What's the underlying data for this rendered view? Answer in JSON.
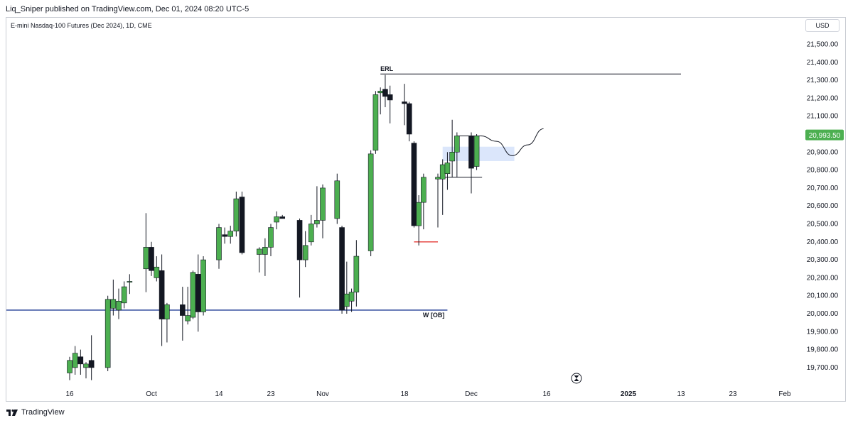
{
  "header": {
    "published_text": "Liq_Sniper published on TradingView.com, Dec 01, 2024 08:20 UTC-5"
  },
  "symbol": {
    "title": "E-mini Nasdaq-100 Futures (Dec 2024), 1D, CME"
  },
  "currency_button": "USD",
  "footer": {
    "brand": "TradingView"
  },
  "colors": {
    "up_candle": "#4caf50",
    "down_candle": "#131722",
    "wick": "#131722",
    "erl_line": "#131722",
    "ob_line": "#1f3a93",
    "low_marker": "#e53935",
    "fvg_box": "#dbe6fb",
    "price_tag": "#4caf50"
  },
  "chart_data": {
    "type": "candlestick",
    "instrument": "E-mini Nasdaq-100 Futures (Dec 2024)",
    "timeframe": "1D",
    "currency": "USD",
    "y_axis": {
      "ticks": [
        19700,
        19800,
        19900,
        20000,
        20100,
        20200,
        20300,
        20400,
        20500,
        20600,
        20700,
        20800,
        20900,
        21000,
        21100,
        21200,
        21300,
        21400,
        21500
      ],
      "tick_labels": [
        "19,700.00",
        "19,800.00",
        "19,900.00",
        "20,000.00",
        "20,100.00",
        "20,200.00",
        "20,300.00",
        "20,400.00",
        "20,500.00",
        "20,600.00",
        "20,700.00",
        "20,800.00",
        "20,900.00",
        "21,000.00",
        "21,100.00",
        "21,200.00",
        "21,300.00",
        "21,400.00",
        "21,500.00"
      ],
      "range": [
        19630,
        21570
      ]
    },
    "x_axis": {
      "labels": [
        {
          "text": "16",
          "date": "2024-09-16"
        },
        {
          "text": "Oct",
          "date": "2024-10-01"
        },
        {
          "text": "14",
          "date": "2024-10-14"
        },
        {
          "text": "23",
          "date": "2024-10-23"
        },
        {
          "text": "Nov",
          "date": "2024-11-01"
        },
        {
          "text": "18",
          "date": "2024-11-18"
        },
        {
          "text": "Dec",
          "date": "2024-12-02"
        },
        {
          "text": "16",
          "date": "2024-12-16"
        },
        {
          "text": "2025",
          "date": "2025-01-01",
          "bold": true
        },
        {
          "text": "13",
          "date": "2025-01-13"
        },
        {
          "text": "23",
          "date": "2025-01-23"
        },
        {
          "text": "Feb",
          "date": "2025-02-03"
        }
      ]
    },
    "last_price": 20993.5,
    "last_price_label": "20,993.50",
    "candles": [
      {
        "date": "2024-09-16",
        "o": 19670,
        "h": 19760,
        "l": 19630,
        "c": 19740
      },
      {
        "date": "2024-09-17",
        "o": 19700,
        "h": 19820,
        "l": 19660,
        "c": 19780
      },
      {
        "date": "2024-09-18",
        "o": 19760,
        "h": 19800,
        "l": 19660,
        "c": 19720
      },
      {
        "date": "2024-09-19",
        "o": 19700,
        "h": 19730,
        "l": 19640,
        "c": 19720
      },
      {
        "date": "2024-09-20",
        "o": 19740,
        "h": 19880,
        "l": 19630,
        "c": 19700
      },
      {
        "date": "2024-09-23",
        "o": 19700,
        "h": 20100,
        "l": 19680,
        "c": 20080
      },
      {
        "date": "2024-09-24",
        "o": 20030,
        "h": 20190,
        "l": 19990,
        "c": 20080
      },
      {
        "date": "2024-09-25",
        "o": 20020,
        "h": 20140,
        "l": 19970,
        "c": 20070
      },
      {
        "date": "2024-09-26",
        "o": 20060,
        "h": 20180,
        "l": 20030,
        "c": 20150
      },
      {
        "date": "2024-09-27",
        "o": 20180,
        "h": 20220,
        "l": 20110,
        "c": 20180
      },
      {
        "date": "2024-09-30",
        "o": 20250,
        "h": 20560,
        "l": 20120,
        "c": 20370
      },
      {
        "date": "2024-10-01",
        "o": 20370,
        "h": 20400,
        "l": 20210,
        "c": 20240
      },
      {
        "date": "2024-10-02",
        "o": 20200,
        "h": 20320,
        "l": 20180,
        "c": 20260
      },
      {
        "date": "2024-10-03",
        "o": 20240,
        "h": 20330,
        "l": 19820,
        "c": 19970
      },
      {
        "date": "2024-10-04",
        "o": 19970,
        "h": 20060,
        "l": 19840,
        "c": 20050
      },
      {
        "date": "2024-10-07",
        "o": 20050,
        "h": 20150,
        "l": 19850,
        "c": 19990
      },
      {
        "date": "2024-10-08",
        "o": 19960,
        "h": 20150,
        "l": 19940,
        "c": 19990
      },
      {
        "date": "2024-10-09",
        "o": 19980,
        "h": 20240,
        "l": 19970,
        "c": 20230
      },
      {
        "date": "2024-10-10",
        "o": 20220,
        "h": 20330,
        "l": 19900,
        "c": 20010
      },
      {
        "date": "2024-10-11",
        "o": 20010,
        "h": 20320,
        "l": 19990,
        "c": 20300
      },
      {
        "date": "2024-10-14",
        "o": 20300,
        "h": 20500,
        "l": 20250,
        "c": 20480
      },
      {
        "date": "2024-10-15",
        "o": 20440,
        "h": 20480,
        "l": 20390,
        "c": 20430
      },
      {
        "date": "2024-10-16",
        "o": 20430,
        "h": 20490,
        "l": 20390,
        "c": 20460
      },
      {
        "date": "2024-10-17",
        "o": 20460,
        "h": 20680,
        "l": 20430,
        "c": 20640
      },
      {
        "date": "2024-10-18",
        "o": 20650,
        "h": 20680,
        "l": 20330,
        "c": 20340
      },
      {
        "date": "2024-10-21",
        "o": 20330,
        "h": 20370,
        "l": 20230,
        "c": 20360
      },
      {
        "date": "2024-10-22",
        "o": 20330,
        "h": 20420,
        "l": 20210,
        "c": 20370
      },
      {
        "date": "2024-10-23",
        "o": 20370,
        "h": 20500,
        "l": 20320,
        "c": 20480
      },
      {
        "date": "2024-10-24",
        "o": 20510,
        "h": 20570,
        "l": 20470,
        "c": 20540
      },
      {
        "date": "2024-10-25",
        "o": 20540,
        "h": 20550,
        "l": 20530,
        "c": 20530
      },
      {
        "date": "2024-10-28",
        "o": 20520,
        "h": 20530,
        "l": 20090,
        "c": 20300
      },
      {
        "date": "2024-10-29",
        "o": 20300,
        "h": 20460,
        "l": 20260,
        "c": 20380
      },
      {
        "date": "2024-10-30",
        "o": 20400,
        "h": 20550,
        "l": 20380,
        "c": 20500
      },
      {
        "date": "2024-10-31",
        "o": 20500,
        "h": 20710,
        "l": 20480,
        "c": 20520
      },
      {
        "date": "2024-11-01",
        "o": 20520,
        "h": 20720,
        "l": 20420,
        "c": 20700
      },
      {
        "date": "2024-11-04",
        "o": 20530,
        "h": 20780,
        "l": 20500,
        "c": 20740
      },
      {
        "date": "2024-11-05",
        "o": 20480,
        "h": 20490,
        "l": 20000,
        "c": 20020
      },
      {
        "date": "2024-11-06",
        "o": 20040,
        "h": 20290,
        "l": 20000,
        "c": 20110
      },
      {
        "date": "2024-11-07",
        "o": 20070,
        "h": 20140,
        "l": 20010,
        "c": 20120
      },
      {
        "date": "2024-11-08",
        "o": 20120,
        "h": 20410,
        "l": 20040,
        "c": 20320
      },
      {
        "date": "2024-11-11",
        "o": 20350,
        "h": 20910,
        "l": 20320,
        "c": 20890
      },
      {
        "date": "2024-11-12",
        "o": 20910,
        "h": 21240,
        "l": 20890,
        "c": 21220
      },
      {
        "date": "2024-11-13",
        "o": 21230,
        "h": 21260,
        "l": 21110,
        "c": 21240
      },
      {
        "date": "2024-11-14",
        "o": 21250,
        "h": 21330,
        "l": 21150,
        "c": 21210
      },
      {
        "date": "2024-11-15",
        "o": 21220,
        "h": 21270,
        "l": 21060,
        "c": 21190
      },
      {
        "date": "2024-11-18",
        "o": 21180,
        "h": 21280,
        "l": 21050,
        "c": 21170
      },
      {
        "date": "2024-11-19",
        "o": 21170,
        "h": 21180,
        "l": 20960,
        "c": 21000
      },
      {
        "date": "2024-11-20",
        "o": 20950,
        "h": 20960,
        "l": 20480,
        "c": 20490
      },
      {
        "date": "2024-11-21",
        "o": 20490,
        "h": 20660,
        "l": 20380,
        "c": 20620
      },
      {
        "date": "2024-11-22",
        "o": 20620,
        "h": 20780,
        "l": 20470,
        "c": 20760
      },
      {
        "date": "2024-11-25",
        "o": 20750,
        "h": 20780,
        "l": 20480,
        "c": 20760
      },
      {
        "date": "2024-11-26",
        "o": 20750,
        "h": 20860,
        "l": 20550,
        "c": 20830
      },
      {
        "date": "2024-11-27",
        "o": 20780,
        "h": 20900,
        "l": 20690,
        "c": 20840
      },
      {
        "date": "2024-11-28",
        "o": 20850,
        "h": 21080,
        "l": 20760,
        "c": 20900
      },
      {
        "date": "2024-11-29",
        "o": 20900,
        "h": 21010,
        "l": 20760,
        "c": 20990
      },
      {
        "date": "2024-12-02",
        "o": 20990,
        "h": 21010,
        "l": 20670,
        "c": 20810
      },
      {
        "date": "2024-12-03",
        "o": 20820,
        "h": 21000,
        "l": 20800,
        "c": 20990
      }
    ],
    "annotations": [
      {
        "type": "label",
        "text": "ERL"
      },
      {
        "type": "hline",
        "name": "ERL",
        "price": 21335,
        "start_date": "2024-11-13",
        "end_date": "2025-01-13"
      },
      {
        "type": "label",
        "text": "W [OB]"
      },
      {
        "type": "hline",
        "name": "W [OB]",
        "price": 20020,
        "start_date": "2024-09-02",
        "end_date": "2024-11-27"
      },
      {
        "type": "hline",
        "name": "red low",
        "price": 20400,
        "start_date": "2024-11-20",
        "end_date": "2024-11-25"
      },
      {
        "type": "hline",
        "name": "upper level",
        "price": 20990,
        "start_date": "2024-11-29",
        "end_date": "2024-12-04"
      },
      {
        "type": "hline",
        "name": "lower level",
        "price": 20760,
        "start_date": "2024-11-25",
        "end_date": "2024-12-04"
      },
      {
        "type": "box",
        "name": "fvg",
        "price_low": 20850,
        "price_high": 20930,
        "start_date": "2024-11-26",
        "end_date": "2024-12-10"
      }
    ],
    "projection_path": [
      [
        0,
        20990
      ],
      [
        1,
        20960
      ],
      [
        2,
        20880
      ],
      [
        3,
        20940
      ],
      [
        4,
        21030
      ]
    ]
  }
}
